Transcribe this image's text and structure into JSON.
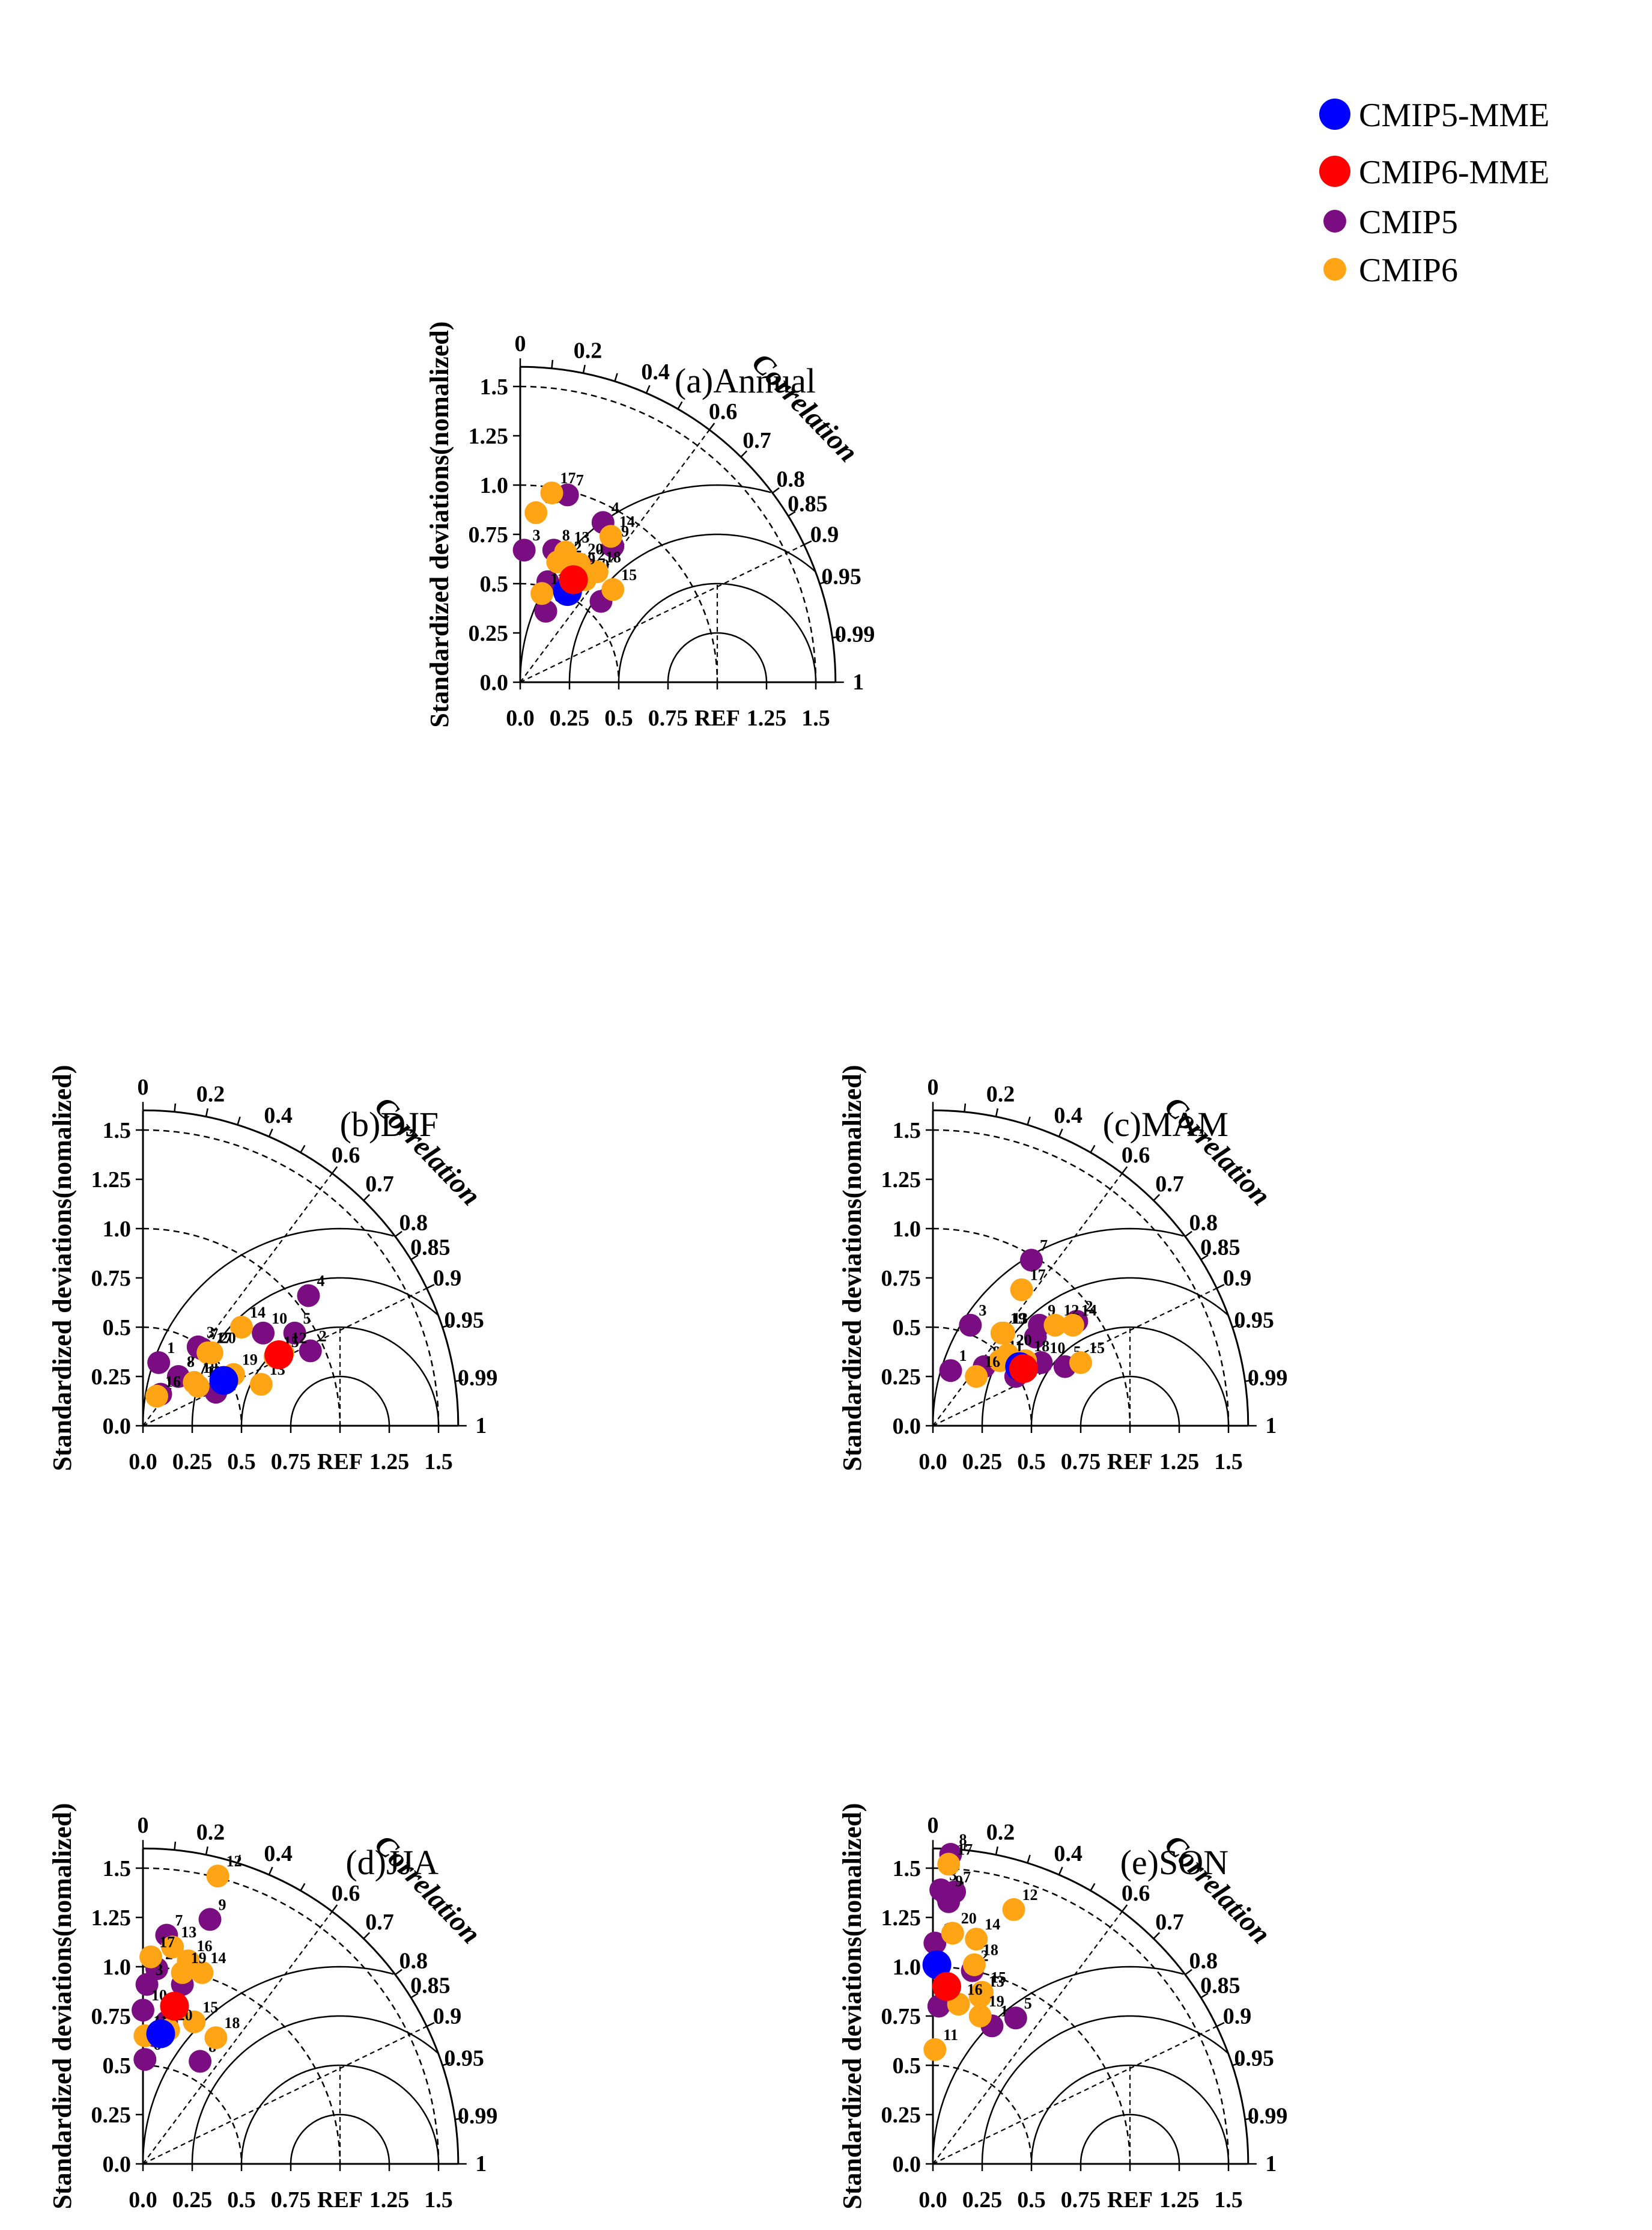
{
  "colors": {
    "cmip5_mme": "#0000ff",
    "cmip6_mme": "#ff0000",
    "cmip5": "#7b0d82",
    "cmip6": "#ffa515"
  },
  "legend": {
    "position": "top-right",
    "items": [
      {
        "label": "CMIP5-MME",
        "color_key": "cmip5_mme",
        "size": "large"
      },
      {
        "label": "CMIP6-MME",
        "color_key": "cmip6_mme",
        "size": "large"
      },
      {
        "label": "CMIP5",
        "color_key": "cmip5",
        "size": "small"
      },
      {
        "label": "CMIP6",
        "color_key": "cmip6",
        "size": "small"
      }
    ]
  },
  "axes_text": {
    "ylabel": "Standardized deviations(nomalized)",
    "corr_label": "Correlation",
    "ref_label": "REF",
    "x_ticks": [
      "0.0",
      "0.25",
      "0.5",
      "0.75",
      "REF",
      "1.25",
      "1.5"
    ],
    "y_ticks": [
      "0.0",
      "0.25",
      "0.5",
      "0.75",
      "1.0",
      "1.25",
      "1.5"
    ],
    "corr_ticks": [
      "0",
      "0.2",
      "0.4",
      "0.6",
      "0.7",
      "0.8",
      "0.85",
      "0.9",
      "0.95",
      "0.99",
      "1"
    ]
  },
  "chart_data": [
    {
      "type": "scatter",
      "subtype": "taylor-diagram",
      "title": "(a)Annual",
      "xlabel": "",
      "ylabel": "Standardized deviations(nomalized)",
      "xlim": [
        0,
        1.6
      ],
      "ylim": [
        0,
        1.6
      ],
      "mme": {
        "CMIP5-MME": [
          0.24,
          0.46
        ],
        "CMIP6-MME": [
          0.27,
          0.52
        ]
      },
      "series": [
        {
          "name": "CMIP5",
          "points": [
            {
              "id": "1",
              "x": 0.14,
              "y": 0.51
            },
            {
              "id": "2",
              "x": 0.35,
              "y": 0.57
            },
            {
              "id": "3",
              "x": 0.02,
              "y": 0.67
            },
            {
              "id": "4",
              "x": 0.42,
              "y": 0.81
            },
            {
              "id": "5",
              "x": 0.41,
              "y": 0.41
            },
            {
              "id": "6",
              "x": 0.13,
              "y": 0.36
            },
            {
              "id": "7",
              "x": 0.24,
              "y": 0.95
            },
            {
              "id": "8",
              "x": 0.17,
              "y": 0.67
            },
            {
              "id": "9",
              "x": 0.47,
              "y": 0.69
            }
          ]
        },
        {
          "name": "CMIP6",
          "points": [
            {
              "id": "10",
              "x": 0.33,
              "y": 0.52
            },
            {
              "id": "11",
              "x": 0.11,
              "y": 0.45
            },
            {
              "id": "12",
              "x": 0.19,
              "y": 0.61
            },
            {
              "id": "13",
              "x": 0.23,
              "y": 0.66
            },
            {
              "id": "14",
              "x": 0.46,
              "y": 0.74
            },
            {
              "id": "15",
              "x": 0.47,
              "y": 0.47
            },
            {
              "id": "16",
              "x": 0.08,
              "y": 0.86
            },
            {
              "id": "17",
              "x": 0.16,
              "y": 0.96
            },
            {
              "id": "18",
              "x": 0.39,
              "y": 0.56
            },
            {
              "id": "19",
              "x": 0.26,
              "y": 0.55
            },
            {
              "id": "20",
              "x": 0.3,
              "y": 0.6
            }
          ]
        }
      ]
    },
    {
      "type": "scatter",
      "subtype": "taylor-diagram",
      "title": "(b)DJF",
      "xlabel": "",
      "ylabel": "Standardized deviations(nomalized)",
      "xlim": [
        0,
        1.6
      ],
      "ylim": [
        0,
        1.6
      ],
      "mme": {
        "CMIP5-MME": [
          0.41,
          0.23
        ],
        "CMIP6-MME": [
          0.69,
          0.36
        ]
      },
      "series": [
        {
          "name": "CMIP5",
          "points": [
            {
              "id": "1",
              "x": 0.08,
              "y": 0.32
            },
            {
              "id": "2",
              "x": 0.85,
              "y": 0.38
            },
            {
              "id": "3",
              "x": 0.28,
              "y": 0.4
            },
            {
              "id": "4",
              "x": 0.84,
              "y": 0.66
            },
            {
              "id": "5",
              "x": 0.77,
              "y": 0.47
            },
            {
              "id": "6",
              "x": 0.09,
              "y": 0.16
            },
            {
              "id": "7",
              "x": 0.3,
              "y": 0.39
            },
            {
              "id": "8",
              "x": 0.18,
              "y": 0.25
            },
            {
              "id": "9",
              "x": 0.37,
              "y": 0.17
            },
            {
              "id": "10",
              "x": 0.61,
              "y": 0.47
            }
          ]
        },
        {
          "name": "CMIP6",
          "points": [
            {
              "id": "11",
              "x": 0.28,
              "y": 0.2
            },
            {
              "id": "12",
              "x": 0.71,
              "y": 0.37
            },
            {
              "id": "13",
              "x": 0.6,
              "y": 0.21
            },
            {
              "id": "14",
              "x": 0.5,
              "y": 0.5
            },
            {
              "id": "15",
              "x": 0.67,
              "y": 0.35
            },
            {
              "id": "16",
              "x": 0.07,
              "y": 0.15
            },
            {
              "id": "17",
              "x": 0.33,
              "y": 0.37
            },
            {
              "id": "18",
              "x": 0.26,
              "y": 0.22
            },
            {
              "id": "19",
              "x": 0.46,
              "y": 0.26
            },
            {
              "id": "20",
              "x": 0.35,
              "y": 0.37
            }
          ]
        }
      ]
    },
    {
      "type": "scatter",
      "subtype": "taylor-diagram",
      "title": "(c)MAM",
      "xlabel": "",
      "ylabel": "Standardized deviations(nomalized)",
      "xlim": [
        0,
        1.6
      ],
      "ylim": [
        0,
        1.6
      ],
      "mme": {
        "CMIP5-MME": [
          0.44,
          0.3
        ],
        "CMIP6-MME": [
          0.46,
          0.29
        ]
      },
      "series": [
        {
          "name": "CMIP5",
          "points": [
            {
              "id": "1",
              "x": 0.09,
              "y": 0.28
            },
            {
              "id": "2",
              "x": 0.73,
              "y": 0.53
            },
            {
              "id": "3",
              "x": 0.19,
              "y": 0.51
            },
            {
              "id": "4",
              "x": 0.52,
              "y": 0.45
            },
            {
              "id": "5",
              "x": 0.67,
              "y": 0.3
            },
            {
              "id": "6",
              "x": 0.42,
              "y": 0.25
            },
            {
              "id": "7",
              "x": 0.5,
              "y": 0.84
            },
            {
              "id": "8",
              "x": 0.26,
              "y": 0.3
            },
            {
              "id": "9",
              "x": 0.54,
              "y": 0.51
            },
            {
              "id": "10",
              "x": 0.55,
              "y": 0.32
            }
          ]
        },
        {
          "name": "CMIP6",
          "points": [
            {
              "id": "11",
              "x": 0.34,
              "y": 0.33
            },
            {
              "id": "12",
              "x": 0.62,
              "y": 0.51
            },
            {
              "id": "13",
              "x": 0.36,
              "y": 0.47
            },
            {
              "id": "14",
              "x": 0.71,
              "y": 0.51
            },
            {
              "id": "15",
              "x": 0.75,
              "y": 0.32
            },
            {
              "id": "16",
              "x": 0.22,
              "y": 0.25
            },
            {
              "id": "17",
              "x": 0.45,
              "y": 0.69
            },
            {
              "id": "18",
              "x": 0.47,
              "y": 0.33
            },
            {
              "id": "19",
              "x": 0.35,
              "y": 0.47
            },
            {
              "id": "20",
              "x": 0.38,
              "y": 0.36
            }
          ]
        }
      ]
    },
    {
      "type": "scatter",
      "subtype": "taylor-diagram",
      "title": "(d)JJA",
      "xlabel": "",
      "ylabel": "Standardized deviations(nomalized)",
      "xlim": [
        0,
        1.6
      ],
      "ylim": [
        0,
        1.6
      ],
      "mme": {
        "CMIP5-MME": [
          0.09,
          0.66
        ],
        "CMIP6-MME": [
          0.16,
          0.8
        ]
      },
      "series": [
        {
          "name": "CMIP5",
          "points": [
            {
              "id": "1",
              "x": 0.12,
              "y": 0.72
            },
            {
              "id": "2",
              "x": 0.07,
              "y": 0.99
            },
            {
              "id": "3",
              "x": 0.02,
              "y": 0.91
            },
            {
              "id": "4",
              "x": 0.2,
              "y": 0.91
            },
            {
              "id": "5",
              "x": 0.06,
              "y": 0.65
            },
            {
              "id": "6",
              "x": 0.01,
              "y": 0.53
            },
            {
              "id": "7",
              "x": 0.12,
              "y": 1.16
            },
            {
              "id": "8",
              "x": 0.29,
              "y": 0.52
            },
            {
              "id": "9",
              "x": 0.34,
              "y": 1.24
            },
            {
              "id": "10",
              "x": 0.0,
              "y": 0.78
            }
          ]
        },
        {
          "name": "CMIP6",
          "points": [
            {
              "id": "11",
              "x": 0.01,
              "y": 0.65
            },
            {
              "id": "12",
              "x": 0.38,
              "y": 1.46
            },
            {
              "id": "13",
              "x": 0.15,
              "y": 1.1
            },
            {
              "id": "14",
              "x": 0.3,
              "y": 0.97
            },
            {
              "id": "15",
              "x": 0.26,
              "y": 0.72
            },
            {
              "id": "16",
              "x": 0.23,
              "y": 1.03
            },
            {
              "id": "17",
              "x": 0.04,
              "y": 1.05
            },
            {
              "id": "18",
              "x": 0.37,
              "y": 0.64
            },
            {
              "id": "19",
              "x": 0.2,
              "y": 0.97
            },
            {
              "id": "20",
              "x": 0.13,
              "y": 0.68
            }
          ]
        }
      ]
    },
    {
      "type": "scatter",
      "subtype": "taylor-diagram",
      "title": "(e)SON",
      "xlabel": "",
      "ylabel": "Standardized deviations(nomalized)",
      "xlim": [
        0,
        1.6
      ],
      "ylim": [
        0,
        1.6
      ],
      "mme": {
        "CMIP5-MME": [
          0.02,
          1.01
        ],
        "CMIP6-MME": [
          0.07,
          0.9
        ]
      },
      "series": [
        {
          "name": "CMIP5",
          "points": [
            {
              "id": "1",
              "x": 0.3,
              "y": 0.7
            },
            {
              "id": "2",
              "x": 0.2,
              "y": 0.98
            },
            {
              "id": "3",
              "x": 0.04,
              "y": 1.39
            },
            {
              "id": "4",
              "x": 0.08,
              "y": 1.33
            },
            {
              "id": "5",
              "x": 0.42,
              "y": 0.74
            },
            {
              "id": "6",
              "x": 0.03,
              "y": 0.8
            },
            {
              "id": "7",
              "x": 0.11,
              "y": 1.38
            },
            {
              "id": "8",
              "x": 0.09,
              "y": 1.57
            },
            {
              "id": "9",
              "x": 0.07,
              "y": 1.36
            },
            {
              "id": "10",
              "x": 0.01,
              "y": 1.12
            }
          ]
        },
        {
          "name": "CMIP6",
          "points": [
            {
              "id": "11",
              "x": 0.01,
              "y": 0.58
            },
            {
              "id": "12",
              "x": 0.41,
              "y": 1.29
            },
            {
              "id": "13",
              "x": 0.24,
              "y": 0.85
            },
            {
              "id": "14",
              "x": 0.22,
              "y": 1.14
            },
            {
              "id": "15",
              "x": 0.25,
              "y": 0.87
            },
            {
              "id": "16",
              "x": 0.13,
              "y": 0.81
            },
            {
              "id": "17",
              "x": 0.08,
              "y": 1.52
            },
            {
              "id": "18",
              "x": 0.21,
              "y": 1.01
            },
            {
              "id": "19",
              "x": 0.24,
              "y": 0.75
            },
            {
              "id": "20",
              "x": 0.1,
              "y": 1.17
            }
          ]
        }
      ]
    }
  ]
}
